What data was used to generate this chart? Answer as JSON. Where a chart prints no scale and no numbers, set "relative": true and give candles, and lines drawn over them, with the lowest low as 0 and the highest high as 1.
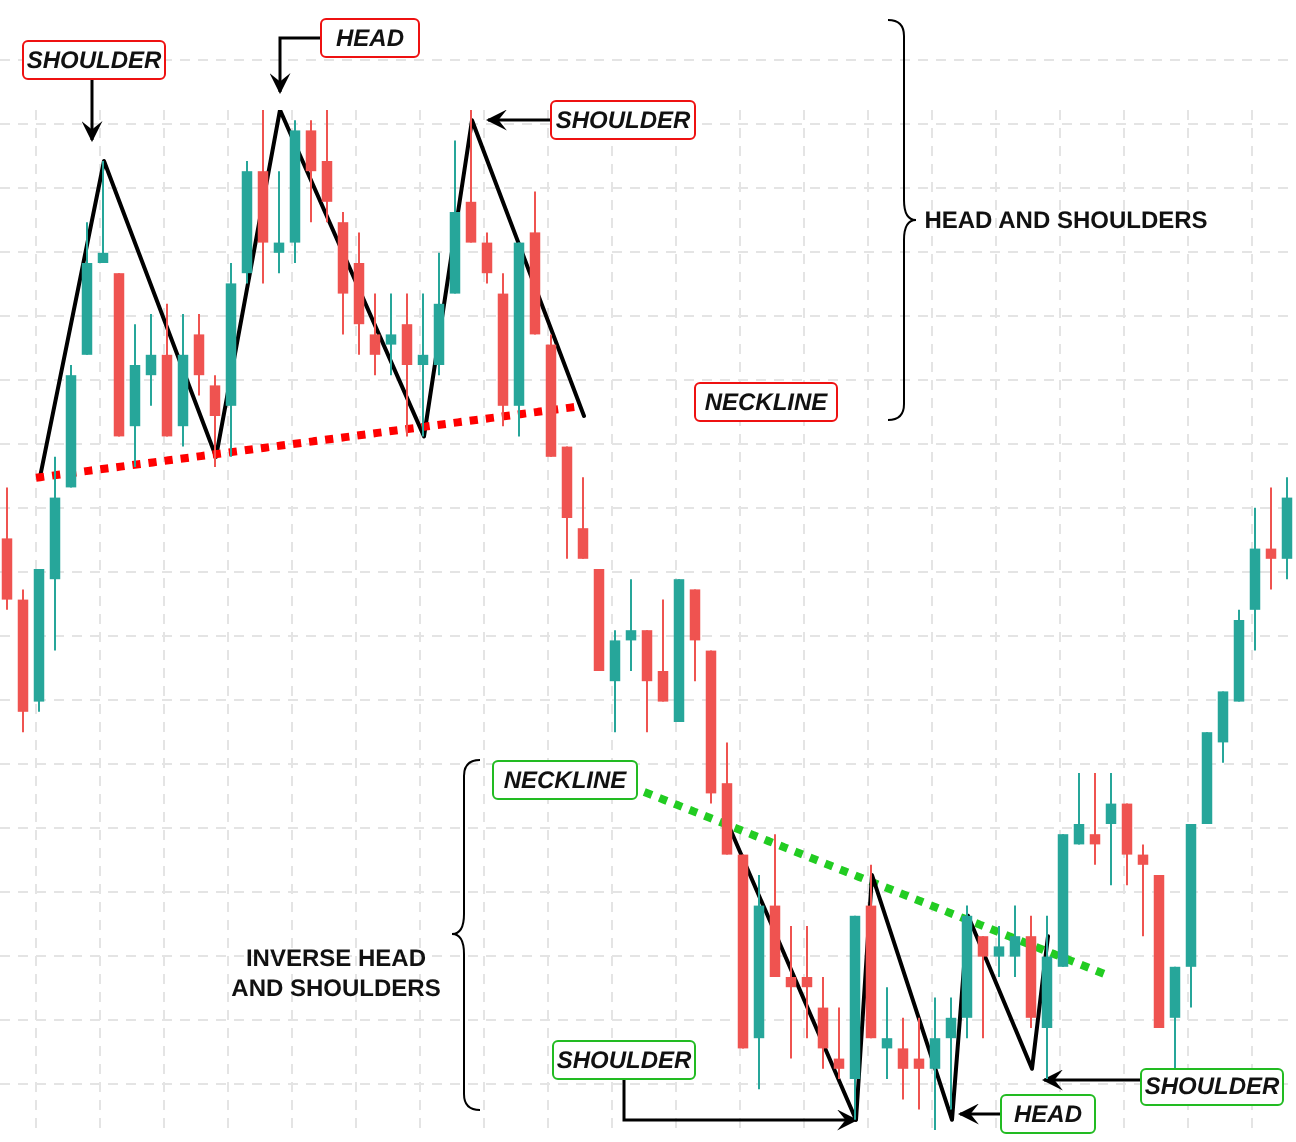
{
  "chart_data": {
    "type": "candlestick",
    "relative": true,
    "grid": true,
    "categories": [
      null,
      null,
      null,
      null,
      null,
      null,
      null,
      null,
      null,
      null,
      null,
      null,
      null,
      null,
      null,
      null,
      null,
      null,
      null,
      null,
      null,
      null,
      null,
      null,
      null,
      null,
      null,
      null,
      null,
      null,
      null,
      null,
      null,
      null,
      null,
      null,
      null,
      null,
      null,
      null,
      null,
      null,
      null,
      null,
      null,
      null,
      null,
      null,
      null,
      null,
      null,
      null,
      null,
      null,
      null,
      null,
      null,
      null,
      null,
      null,
      null,
      null,
      null,
      null,
      null,
      null,
      null,
      null,
      null,
      null,
      null,
      null,
      null,
      null,
      null,
      null,
      null,
      null,
      null,
      null,
      null
    ],
    "ohlc": [
      [
        0.58,
        0.63,
        0.51,
        0.52
      ],
      [
        0.52,
        0.53,
        0.39,
        0.41
      ],
      [
        0.42,
        0.55,
        0.41,
        0.55
      ],
      [
        0.54,
        0.66,
        0.47,
        0.62
      ],
      [
        0.63,
        0.75,
        0.63,
        0.74
      ],
      [
        0.76,
        0.89,
        0.76,
        0.85
      ],
      [
        0.85,
        0.95,
        0.85,
        0.86
      ],
      [
        0.84,
        0.84,
        0.68,
        0.68
      ],
      [
        0.69,
        0.79,
        0.65,
        0.75
      ],
      [
        0.74,
        0.8,
        0.71,
        0.76
      ],
      [
        0.76,
        0.81,
        0.68,
        0.68
      ],
      [
        0.69,
        0.8,
        0.67,
        0.76
      ],
      [
        0.78,
        0.8,
        0.72,
        0.74
      ],
      [
        0.73,
        0.74,
        0.65,
        0.7
      ],
      [
        0.71,
        0.85,
        0.66,
        0.83
      ],
      [
        0.84,
        0.95,
        0.83,
        0.94
      ],
      [
        0.94,
        1.0,
        0.83,
        0.87
      ],
      [
        0.86,
        0.94,
        0.84,
        0.87
      ],
      [
        0.87,
        0.99,
        0.85,
        0.98
      ],
      [
        0.98,
        0.99,
        0.89,
        0.94
      ],
      [
        0.95,
        1.0,
        0.89,
        0.91
      ],
      [
        0.89,
        0.9,
        0.78,
        0.82
      ],
      [
        0.85,
        0.88,
        0.76,
        0.79
      ],
      [
        0.78,
        0.82,
        0.74,
        0.76
      ],
      [
        0.77,
        0.82,
        0.74,
        0.78
      ],
      [
        0.79,
        0.82,
        0.68,
        0.75
      ],
      [
        0.75,
        0.82,
        0.68,
        0.76
      ],
      [
        0.75,
        0.86,
        0.74,
        0.81
      ],
      [
        0.82,
        0.97,
        0.82,
        0.9
      ],
      [
        0.91,
        1.0,
        0.87,
        0.87
      ],
      [
        0.87,
        0.88,
        0.83,
        0.84
      ],
      [
        0.82,
        0.84,
        0.69,
        0.71
      ],
      [
        0.71,
        0.87,
        0.68,
        0.87
      ],
      [
        0.88,
        0.92,
        0.78,
        0.78
      ],
      [
        0.77,
        0.78,
        0.66,
        0.66
      ],
      [
        0.67,
        0.67,
        0.56,
        0.6
      ],
      [
        0.59,
        0.64,
        0.56,
        0.56
      ],
      [
        0.55,
        0.55,
        0.45,
        0.45
      ],
      [
        0.44,
        0.49,
        0.39,
        0.48
      ],
      [
        0.48,
        0.54,
        0.45,
        0.49
      ],
      [
        0.49,
        0.49,
        0.39,
        0.44
      ],
      [
        0.45,
        0.52,
        0.42,
        0.42
      ],
      [
        0.4,
        0.54,
        0.4,
        0.54
      ],
      [
        0.53,
        0.53,
        0.44,
        0.48
      ],
      [
        0.47,
        0.47,
        0.32,
        0.33
      ],
      [
        0.34,
        0.38,
        0.27,
        0.27
      ],
      [
        0.27,
        0.27,
        0.08,
        0.08
      ],
      [
        0.09,
        0.25,
        0.04,
        0.22
      ],
      [
        0.22,
        0.29,
        0.15,
        0.15
      ],
      [
        0.15,
        0.2,
        0.07,
        0.14
      ],
      [
        0.15,
        0.2,
        0.09,
        0.14
      ],
      [
        0.12,
        0.15,
        0.06,
        0.08
      ],
      [
        0.07,
        0.12,
        0.05,
        0.06
      ],
      [
        0.05,
        0.21,
        0.01,
        0.21
      ],
      [
        0.22,
        0.26,
        0.09,
        0.09
      ],
      [
        0.08,
        0.14,
        0.05,
        0.09
      ],
      [
        0.08,
        0.11,
        0.03,
        0.06
      ],
      [
        0.07,
        0.11,
        0.02,
        0.06
      ],
      [
        0.06,
        0.13,
        0.0,
        0.09
      ],
      [
        0.09,
        0.13,
        0.02,
        0.11
      ],
      [
        0.11,
        0.22,
        0.09,
        0.21
      ],
      [
        0.19,
        0.19,
        0.09,
        0.17
      ],
      [
        0.17,
        0.2,
        0.15,
        0.18
      ],
      [
        0.17,
        0.22,
        0.15,
        0.19
      ],
      [
        0.19,
        0.21,
        0.1,
        0.11
      ],
      [
        0.1,
        0.21,
        0.05,
        0.17
      ],
      [
        0.16,
        0.29,
        0.16,
        0.29
      ],
      [
        0.28,
        0.35,
        0.28,
        0.3
      ],
      [
        0.29,
        0.35,
        0.26,
        0.28
      ],
      [
        0.3,
        0.35,
        0.24,
        0.32
      ],
      [
        0.32,
        0.32,
        0.24,
        0.27
      ],
      [
        0.27,
        0.28,
        0.19,
        0.26
      ],
      [
        0.25,
        0.25,
        0.1,
        0.1
      ],
      [
        0.11,
        0.16,
        0.06,
        0.16
      ],
      [
        0.16,
        0.3,
        0.12,
        0.3
      ],
      [
        0.3,
        0.39,
        0.3,
        0.39
      ],
      [
        0.38,
        0.43,
        0.36,
        0.43
      ],
      [
        0.42,
        0.51,
        0.42,
        0.5
      ],
      [
        0.51,
        0.61,
        0.47,
        0.57
      ],
      [
        0.57,
        0.63,
        0.53,
        0.56
      ],
      [
        0.56,
        0.64,
        0.54,
        0.62
      ]
    ],
    "series": [
      {
        "type": "line",
        "color": "#000000",
        "line_style": "solid",
        "values": [
          null,
          null,
          0.64,
          null,
          null,
          null,
          0.95,
          null,
          null,
          null,
          null,
          null,
          null,
          0.66,
          null,
          null,
          null,
          1.0,
          null,
          null,
          null,
          null,
          null,
          null,
          null,
          null,
          0.68,
          null,
          null,
          0.99,
          null,
          null,
          null,
          null,
          null,
          null,
          0.7,
          null,
          null,
          null,
          null,
          null,
          null,
          null,
          null,
          null,
          null,
          null,
          null,
          null,
          null,
          null,
          null,
          null,
          null,
          null,
          null,
          null,
          null,
          null,
          null,
          null,
          null,
          null,
          null,
          null,
          null,
          null,
          null,
          null,
          null,
          null,
          null,
          null,
          null,
          null,
          null,
          null,
          null,
          null,
          null
        ]
      },
      {
        "type": "line",
        "color": "#ff0000",
        "line_style": "dotted",
        "values": [
          null,
          null,
          0.64,
          null,
          null,
          null,
          null,
          null,
          null,
          null,
          null,
          null,
          null,
          null,
          null,
          null,
          null,
          null,
          null,
          null,
          null,
          null,
          null,
          null,
          null,
          null,
          null,
          null,
          null,
          null,
          null,
          null,
          null,
          null,
          null,
          null,
          0.71,
          null,
          null,
          null,
          null,
          null,
          null,
          null,
          null,
          null,
          null,
          null,
          null,
          null,
          null,
          null,
          null,
          null,
          null,
          null,
          null,
          null,
          null,
          null,
          null,
          null,
          null,
          null,
          null,
          null,
          null,
          null,
          null,
          null,
          null,
          null,
          null,
          null,
          null,
          null,
          null,
          null,
          null,
          null,
          null
        ]
      },
      {
        "type": "line",
        "color": "#22cc22",
        "line_style": "dotted",
        "values": [
          null,
          null,
          null,
          null,
          null,
          null,
          null,
          null,
          null,
          null,
          null,
          null,
          null,
          null,
          null,
          null,
          null,
          null,
          null,
          null,
          null,
          null,
          null,
          null,
          null,
          null,
          null,
          null,
          null,
          null,
          null,
          null,
          null,
          null,
          null,
          null,
          null,
          null,
          null,
          null,
          0.33,
          null,
          null,
          null,
          null,
          null,
          null,
          null,
          null,
          null,
          null,
          null,
          null,
          null,
          null,
          null,
          null,
          null,
          null,
          null,
          null,
          null,
          null,
          null,
          null,
          null,
          null,
          null,
          null,
          0.15,
          null,
          null,
          null,
          null,
          null,
          null,
          null,
          null,
          null,
          null,
          null
        ]
      },
      {
        "type": "line",
        "color": "#000000",
        "line_style": "solid",
        "values": [
          null,
          null,
          null,
          null,
          null,
          null,
          null,
          null,
          null,
          null,
          null,
          null,
          null,
          null,
          null,
          null,
          null,
          null,
          null,
          null,
          null,
          null,
          null,
          null,
          null,
          null,
          null,
          null,
          null,
          null,
          null,
          null,
          null,
          null,
          null,
          null,
          null,
          null,
          null,
          null,
          null,
          null,
          null,
          null,
          null,
          0.3,
          null,
          null,
          null,
          null,
          null,
          null,
          null,
          0.01,
          0.25,
          null,
          null,
          null,
          null,
          0.01,
          0.21,
          null,
          null,
          null,
          0.06,
          0.19,
          null,
          null,
          null,
          null,
          null,
          null,
          null,
          null,
          null,
          null,
          null,
          null,
          null,
          null,
          null
        ]
      }
    ],
    "annotations": [
      "SHOULDER",
      "HEAD",
      "SHOULDER",
      "NECKLINE",
      "HEAD AND SHOULDERS",
      "NECKLINE",
      "INVERSE HEAD\nAND SHOULDERS",
      "SHOULDER",
      "HEAD",
      "SHOULDER"
    ]
  }
}
